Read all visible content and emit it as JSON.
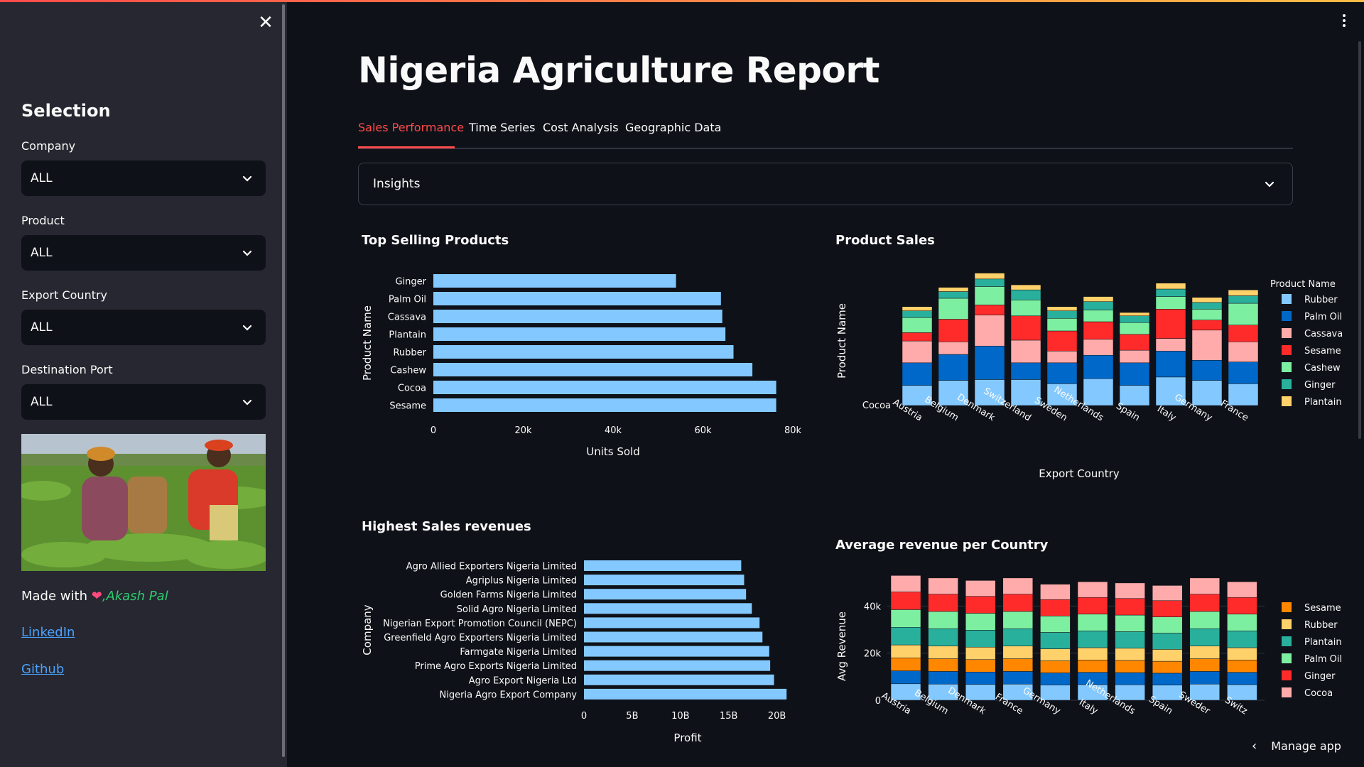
{
  "sidebar": {
    "heading": "Selection",
    "filters": [
      {
        "label": "Company",
        "value": "ALL"
      },
      {
        "label": "Product",
        "value": "ALL"
      },
      {
        "label": "Export Country",
        "value": "ALL"
      },
      {
        "label": "Destination Port",
        "value": "ALL"
      }
    ],
    "made_with": "Made with",
    "heart_icon": "heart-icon",
    "author": ",Akash Pal",
    "links": [
      "LinkedIn",
      "Github"
    ]
  },
  "main": {
    "title": "Nigeria Agriculture Report",
    "tabs": [
      "Sales Performance",
      "Time Series",
      "Cost Analysis",
      "Geographic Data"
    ],
    "active_tab": "Sales Performance",
    "expander_label": "Insights",
    "manage_app": "Manage app"
  },
  "colors": {
    "accent": "#ff4b4b",
    "bar_blue": "#83c9ff",
    "link": "#4aa3ff"
  },
  "chart_data": [
    {
      "id": "top-selling",
      "type": "bar",
      "orientation": "horizontal",
      "title": "Top Selling Products",
      "xlabel": "Units Sold",
      "ylabel": "Product Name",
      "categories": [
        "Ginger",
        "Palm Oil",
        "Cassava",
        "Plantain",
        "Rubber",
        "Cashew",
        "Cocoa",
        "Sesame"
      ],
      "values": [
        54000,
        64000,
        64300,
        65000,
        66800,
        71000,
        76300,
        76300
      ],
      "xlim": [
        0,
        80000
      ],
      "xticks": [
        0,
        20000,
        40000,
        60000,
        80000
      ],
      "xtick_labels": [
        "0",
        "20k",
        "40k",
        "60k",
        "80k"
      ]
    },
    {
      "id": "product-sales",
      "type": "bar",
      "stacked": true,
      "title": "Product Sales",
      "xlabel": "Export Country",
      "ylabel": "Product Name",
      "ytick_label": "Cocoa",
      "legend_title": "Product Name",
      "legend_position": "right",
      "categories": [
        "Austria",
        "Belgium",
        "Denmark",
        "Switzerland",
        "Sweden",
        "Netherlands",
        "Spain",
        "Italy",
        "Germany",
        "France"
      ],
      "series": [
        {
          "name": "Rubber",
          "color": "#83c9ff",
          "values": [
            24,
            30,
            31,
            31,
            26,
            32,
            24,
            34,
            30,
            26
          ]
        },
        {
          "name": "Palm Oil",
          "color": "#0068c9",
          "values": [
            27,
            31,
            40,
            20,
            25,
            28,
            27,
            31,
            24,
            26
          ]
        },
        {
          "name": "Cassava",
          "color": "#ffabab",
          "values": [
            26,
            15,
            37,
            27,
            14,
            19,
            15,
            15,
            36,
            24
          ]
        },
        {
          "name": "Sesame",
          "color": "#ff2b2b",
          "values": [
            10,
            27,
            12,
            29,
            24,
            21,
            19,
            35,
            12,
            20
          ]
        },
        {
          "name": "Cashew",
          "color": "#7defa1",
          "values": [
            18,
            25,
            22,
            19,
            15,
            14,
            14,
            15,
            13,
            26
          ]
        },
        {
          "name": "Ginger",
          "color": "#29b09d",
          "values": [
            8,
            8,
            9,
            12,
            9,
            10,
            8,
            9,
            8,
            9
          ]
        },
        {
          "name": "Plantain",
          "color": "#ffd16a",
          "values": [
            5,
            5,
            7,
            6,
            5,
            6,
            4,
            7,
            6,
            7
          ]
        }
      ]
    },
    {
      "id": "highest-revenues",
      "type": "bar",
      "orientation": "horizontal",
      "title": "Highest Sales revenues",
      "xlabel": "Profit",
      "ylabel": "Company",
      "categories": [
        "Agro Allied Exporters Nigeria Limited",
        "Agriplus Nigeria Limited",
        "Golden Farms Nigeria Limited",
        "Solid Agro Nigeria Limited",
        "Nigerian Export Promotion Council (NEPC)",
        "Greenfield Agro Exporters Nigeria Limited",
        "Farmgate Nigeria Limited",
        "Prime Agro Exports Nigeria Limited",
        "Agro Export Nigeria Ltd",
        "Nigeria Agro Export Company"
      ],
      "values": [
        16.3,
        16.6,
        16.8,
        17.4,
        18.2,
        18.5,
        19.2,
        19.3,
        19.7,
        21.0
      ],
      "value_unit": "B",
      "xlim": [
        0,
        21.5
      ],
      "xticks": [
        0,
        5,
        10,
        15,
        20
      ],
      "xtick_labels": [
        "0",
        "5B",
        "10B",
        "15B",
        "20B"
      ]
    },
    {
      "id": "avg-revenue",
      "type": "bar",
      "stacked": true,
      "title": "Average revenue per Country",
      "ylabel": "Avg Revenue",
      "legend_position": "right",
      "categories": [
        "Austria",
        "Belgium",
        "Denmark",
        "France",
        "Germany",
        "Italy",
        "Netherlands",
        "Spain",
        "Sweden",
        "Switzerland"
      ],
      "category_labels": [
        "Austria",
        "Belgium",
        "Denmark",
        "France",
        "Germany",
        "Italy",
        "Netherlands",
        "Spain",
        "Sweder",
        "Switz"
      ],
      "ylim": [
        0,
        55000
      ],
      "yticks": [
        0,
        20000,
        40000
      ],
      "ytick_labels": [
        "0",
        "20k",
        "40k"
      ],
      "series": [
        {
          "name": "Cocoa",
          "color": "#ffabab",
          "values": [
            7000,
            7000,
            7000,
            7000,
            7000,
            7000,
            7000,
            7000,
            7000,
            7000
          ]
        },
        {
          "name": "Ginger",
          "color": "#ff2b2b",
          "values": [
            7500,
            7500,
            7500,
            7500,
            7500,
            7500,
            7500,
            7500,
            7500,
            7500
          ]
        },
        {
          "name": "Palm Oil",
          "color": "#7defa1",
          "values": [
            7500,
            7500,
            7500,
            7500,
            7500,
            7500,
            7500,
            7500,
            7500,
            7500
          ]
        },
        {
          "name": "Plantain",
          "color": "#29b09d",
          "values": [
            7500,
            7500,
            7500,
            7500,
            7500,
            7500,
            7500,
            7500,
            7500,
            7500
          ]
        },
        {
          "name": "Rubber",
          "color": "#ffd16a",
          "values": [
            5500,
            5500,
            5500,
            5500,
            5500,
            5500,
            5500,
            5500,
            5500,
            5500
          ]
        },
        {
          "name": "Sesame",
          "color": "#ff8700",
          "values": [
            5500,
            5500,
            5500,
            5500,
            5500,
            5500,
            5500,
            5500,
            5500,
            5500
          ]
        },
        {
          "name": "Palm Oil",
          "color": "#0068c9",
          "values": [
            5500,
            5500,
            5500,
            5500,
            5500,
            5500,
            5500,
            5500,
            5500,
            5500
          ]
        },
        {
          "name": "Rubber",
          "color": "#83c9ff",
          "values": [
            7000,
            7000,
            7000,
            7000,
            7000,
            7000,
            7000,
            7000,
            7000,
            7000
          ]
        }
      ],
      "legend": [
        "Sesame",
        "Rubber",
        "Plantain",
        "Palm Oil",
        "Ginger",
        "Cocoa"
      ]
    }
  ]
}
